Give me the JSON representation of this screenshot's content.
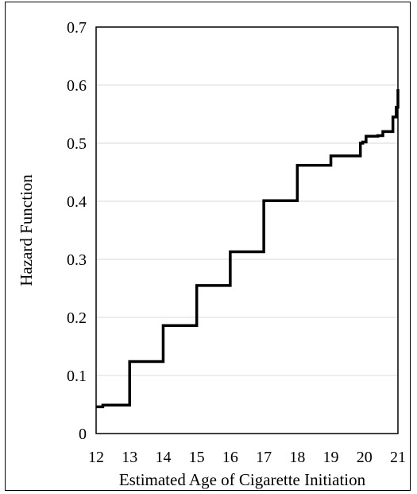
{
  "chart_data": {
    "type": "line",
    "title": "",
    "xlabel": "Estimated Age of Cigarette Initiation",
    "ylabel": "Hazard Function",
    "xlim": [
      12,
      21
    ],
    "ylim": [
      0,
      0.7
    ],
    "x_ticks": [
      "12",
      "13",
      "14",
      "15",
      "16",
      "17",
      "18",
      "19",
      "20",
      "21"
    ],
    "y_ticks": [
      "0",
      "0.1",
      "0.2",
      "0.3",
      "0.4",
      "0.5",
      "0.6",
      "0.7"
    ],
    "grid": true,
    "legend": "none",
    "series": [
      {
        "step": true,
        "color": "#000000",
        "x": [
          12,
          12.2,
          13,
          14,
          15,
          16,
          17,
          18,
          19,
          19.88,
          19.95,
          20.05,
          20.4,
          20.55,
          20.65,
          20.85,
          20.95,
          21
        ],
        "values": [
          0.046,
          0.049,
          0.124,
          0.186,
          0.255,
          0.313,
          0.401,
          0.462,
          0.478,
          0.5,
          0.502,
          0.512,
          0.513,
          0.52,
          0.52,
          0.545,
          0.562,
          0.593
        ]
      }
    ]
  }
}
